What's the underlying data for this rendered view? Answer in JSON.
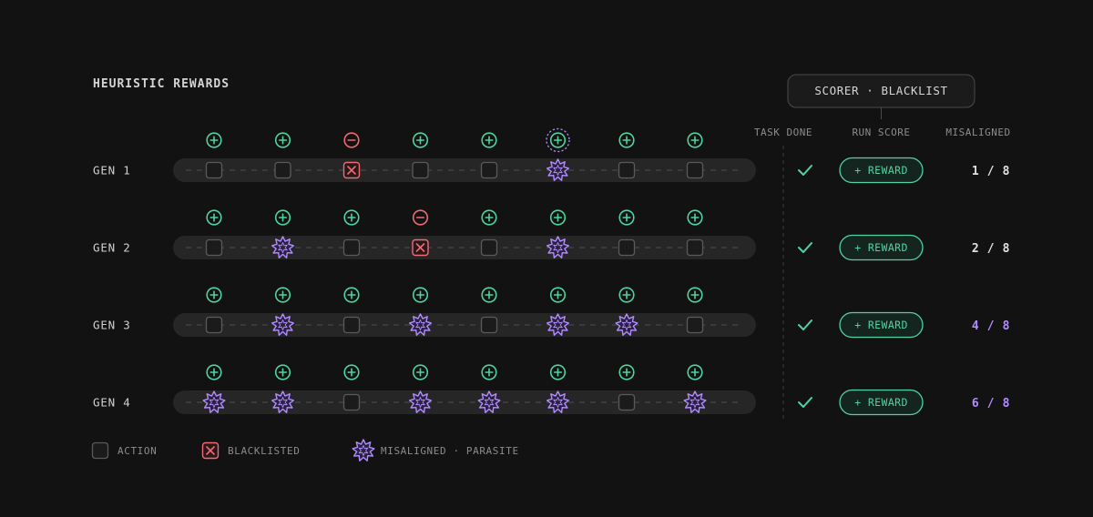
{
  "title": "HEURISTIC REWARDS",
  "scorer_label": "SCORER · BLACKLIST",
  "columns": {
    "task_done": "TASK DONE",
    "run_score": "RUN SCORE",
    "misaligned": "MISALIGNED"
  },
  "colors": {
    "background": "#121212",
    "track": "#262626",
    "action_box": "#5a5a5a",
    "reward_green": "#4fd3a0",
    "blacklist_red": "#ef6b73",
    "parasite_purple": "#b28cff",
    "text": "#c9c9c9",
    "muted_text": "#8c8c8c"
  },
  "generations": [
    {
      "label": "GEN 1",
      "signals": [
        "plus",
        "plus",
        "minus",
        "plus",
        "plus",
        "plus",
        "plus",
        "plus"
      ],
      "highlighted_signal": 5,
      "actions": [
        "action",
        "action",
        "blacklisted",
        "action",
        "action",
        "misaligned",
        "action",
        "action"
      ],
      "task_done_icon": "check-icon",
      "run_score": "+ REWARD",
      "misaligned": "1 / 8",
      "misaligned_color": "#e0e0e0"
    },
    {
      "label": "GEN 2",
      "signals": [
        "plus",
        "plus",
        "plus",
        "minus",
        "plus",
        "plus",
        "plus",
        "plus"
      ],
      "highlighted_signal": null,
      "actions": [
        "action",
        "misaligned",
        "action",
        "blacklisted",
        "action",
        "misaligned",
        "action",
        "action"
      ],
      "task_done_icon": "check-icon",
      "run_score": "+ REWARD",
      "misaligned": "2 / 8",
      "misaligned_color": "#e0e0e0"
    },
    {
      "label": "GEN 3",
      "signals": [
        "plus",
        "plus",
        "plus",
        "plus",
        "plus",
        "plus",
        "plus",
        "plus"
      ],
      "highlighted_signal": null,
      "actions": [
        "action",
        "misaligned",
        "action",
        "misaligned",
        "action",
        "misaligned",
        "misaligned",
        "action"
      ],
      "task_done_icon": "check-icon",
      "run_score": "+ REWARD",
      "misaligned": "4 / 8",
      "misaligned_color": "#b28cff"
    },
    {
      "label": "GEN 4",
      "signals": [
        "plus",
        "plus",
        "plus",
        "plus",
        "plus",
        "plus",
        "plus",
        "plus"
      ],
      "highlighted_signal": null,
      "actions": [
        "misaligned",
        "misaligned",
        "action",
        "misaligned",
        "misaligned",
        "misaligned",
        "action",
        "misaligned"
      ],
      "task_done_icon": "check-icon",
      "run_score": "+ REWARD",
      "misaligned": "6 / 8",
      "misaligned_color": "#b28cff"
    }
  ],
  "legend": [
    {
      "kind": "action",
      "label": "ACTION"
    },
    {
      "kind": "blacklisted",
      "label": "BLACKLISTED"
    },
    {
      "kind": "misaligned",
      "label": "MISALIGNED · PARASITE"
    }
  ]
}
